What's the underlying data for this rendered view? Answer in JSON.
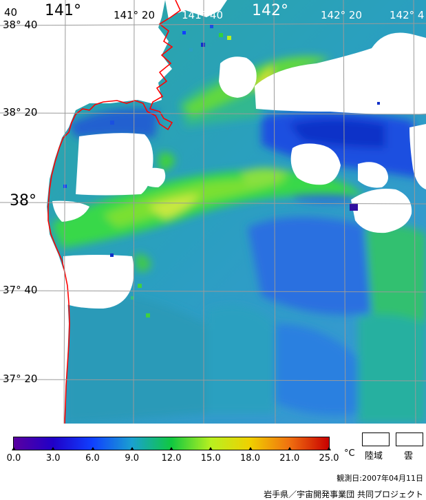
{
  "map": {
    "lon_labels_top": [
      "141°",
      "141° 20",
      "141° 40",
      "142°",
      "142° 20",
      "142° 4"
    ],
    "corner_label": "40",
    "lat_labels_left": [
      "38° 40",
      "38° 20",
      "38°",
      "37° 40",
      "37° 20"
    ],
    "coastline_color": "#ff0000",
    "grid_color": "#9a9a9a"
  },
  "colorbar": {
    "tick_labels": [
      "0.0",
      "3.0",
      "6.0",
      "9.0",
      "12.0",
      "15.0",
      "18.0",
      "21.0",
      "25.0"
    ],
    "unit": "°C",
    "colors": [
      "#5a00a0",
      "#2000c8",
      "#1040ff",
      "#1aa0d0",
      "#10c840",
      "#b8f020",
      "#f0d000",
      "#f07010",
      "#c80000"
    ]
  },
  "legend": {
    "land_label": "陸域",
    "cloud_label": "雲"
  },
  "observation_date": "観測日:2007年04月11日",
  "credit": "岩手県／宇宙開発事業団 共同プロジェクト"
}
